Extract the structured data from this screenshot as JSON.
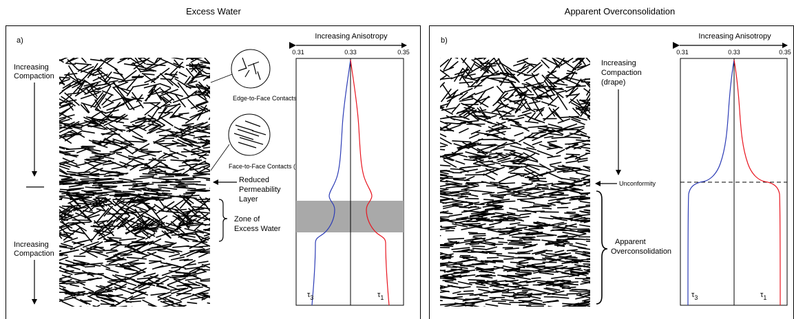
{
  "panel_a": {
    "heading": "Excess Water",
    "letter": "a)",
    "compaction_top": [
      "Increasing",
      "Compaction"
    ],
    "compaction_bottom": [
      "Increasing",
      "Compaction"
    ],
    "ef_label": "Edge-to-Face Contacts (EF)",
    "ff_label": "Face-to-Face Contacts (FF)",
    "permeability": [
      "Reduced",
      "Permeability",
      "Layer"
    ],
    "zone": [
      "Zone of",
      "Excess Water"
    ],
    "anisotropy_label": "Increasing Anisotropy",
    "ticks": [
      "0.31",
      "0.33",
      "0.35"
    ],
    "tau3": "τ",
    "tau3_sub": "3",
    "tau1": "τ",
    "tau1_sub": "1"
  },
  "panel_b": {
    "heading": "Apparent Overconsolidation",
    "letter": "b)",
    "compaction": [
      "Increasing",
      "Compaction",
      "(drape)"
    ],
    "unconformity": "Unconformity",
    "apparent": [
      "Apparent",
      "Overconsolidation"
    ],
    "anisotropy_label": "Increasing Anisotropy",
    "ticks": [
      "0.31",
      "0.33",
      "0.35"
    ],
    "tau3": "τ",
    "tau3_sub": "3",
    "tau1": "τ",
    "tau1_sub": "1"
  },
  "colors": {
    "tau3": "#2b3bb5",
    "tau1": "#e8141e",
    "zone": "#a9a9a9"
  }
}
